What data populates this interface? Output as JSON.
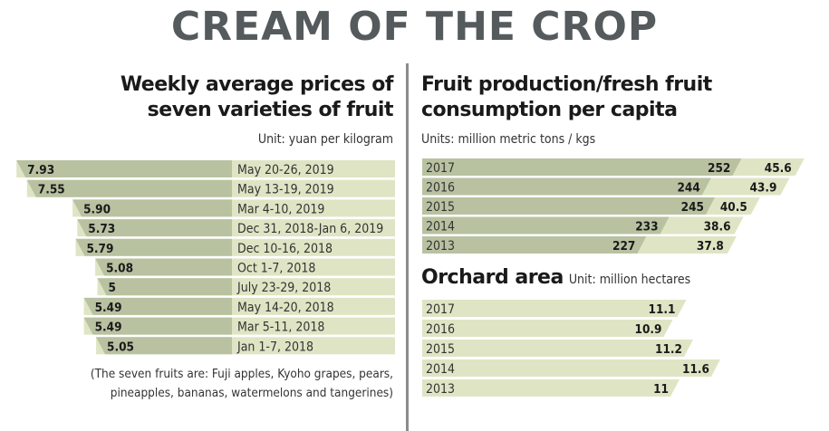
{
  "title": "CREAM OF THE CROP",
  "left": {
    "heading_line1": "Weekly average prices of",
    "heading_line2": "seven varieties of fruit",
    "unit": "Unit: yuan per kilogram",
    "note_line1": "(The seven fruits are: Fuji apples, Kyoho grapes, pears,",
    "note_line2": "pineapples, bananas, watermelons and tangerines)"
  },
  "right": {
    "heading_line1": "Fruit production/fresh fruit",
    "heading_line2": "consumption per capita",
    "unit": "Units: million metric tons / kgs",
    "orchard_title": "Orchard area",
    "orchard_unit": "Unit: million hectares"
  },
  "colors": {
    "bar_dark": "#b8c2a1",
    "bar_light": "#dfe5c4",
    "title": "#555a5c",
    "divider": "#8c8c8c"
  },
  "chart_data": [
    {
      "type": "bar",
      "title": "Weekly average prices of seven varieties of fruit",
      "unit": "yuan per kilogram",
      "categories": [
        "May 20-26, 2019",
        "May 13-19, 2019",
        "Mar 4-10, 2019",
        "Dec 31, 2018-Jan 6, 2019",
        "Dec 10-16, 2018",
        "Oct 1-7, 2018",
        "July 23-29, 2018",
        "May 14-20, 2018",
        "Mar 5-11, 2018",
        "Jan 1-7, 2018"
      ],
      "values": [
        7.93,
        7.55,
        5.9,
        5.73,
        5.79,
        5.08,
        5,
        5.49,
        5.49,
        5.05
      ],
      "labels": [
        "7.93",
        "7.55",
        "5.90",
        "5.73",
        "5.79",
        "5.08",
        "5",
        "5.49",
        "5.49",
        "5.05"
      ]
    },
    {
      "type": "bar",
      "title": "Fruit production/fresh fruit consumption per capita",
      "unit": "million metric tons / kgs",
      "categories": [
        "2017",
        "2016",
        "2015",
        "2014",
        "2013"
      ],
      "series": [
        {
          "values": [
            252,
            244,
            245,
            233,
            227
          ],
          "labels": [
            "252",
            "244",
            "245",
            "233",
            "227"
          ]
        },
        {
          "values": [
            45.6,
            43.9,
            40.5,
            38.6,
            37.8
          ],
          "labels": [
            "45.6",
            "43.9",
            "40.5",
            "38.6",
            "37.8"
          ]
        }
      ]
    },
    {
      "type": "bar",
      "title": "Orchard area",
      "unit": "million hectares",
      "categories": [
        "2017",
        "2016",
        "2015",
        "2014",
        "2013"
      ],
      "values": [
        11.1,
        10.9,
        11.2,
        11.6,
        11
      ],
      "labels": [
        "11.1",
        "10.9",
        "11.2",
        "11.6",
        "11"
      ]
    }
  ]
}
